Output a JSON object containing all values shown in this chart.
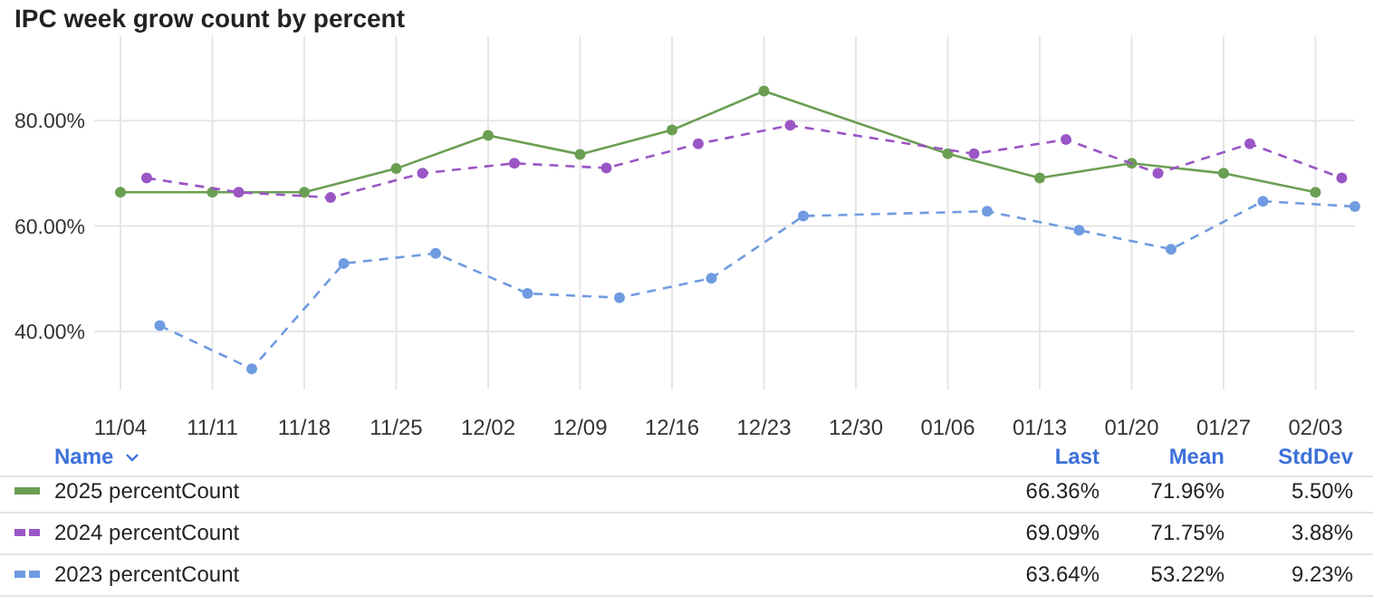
{
  "chart_data": {
    "type": "line",
    "title": "IPC week grow count by percent",
    "xlim": [
      "2024-11-02",
      "2025-02-06"
    ],
    "xticks": [
      {
        "value": "2024-11-04",
        "label": "11/04"
      },
      {
        "value": "2024-11-11",
        "label": "11/11"
      },
      {
        "value": "2024-11-18",
        "label": "11/18"
      },
      {
        "value": "2024-11-25",
        "label": "11/25"
      },
      {
        "value": "2024-12-02",
        "label": "12/02"
      },
      {
        "value": "2024-12-09",
        "label": "12/09"
      },
      {
        "value": "2024-12-16",
        "label": "12/16"
      },
      {
        "value": "2024-12-23",
        "label": "12/23"
      },
      {
        "value": "2024-12-30",
        "label": "12/30"
      },
      {
        "value": "2025-01-06",
        "label": "01/06"
      },
      {
        "value": "2025-01-13",
        "label": "01/13"
      },
      {
        "value": "2025-01-20",
        "label": "01/20"
      },
      {
        "value": "2025-01-27",
        "label": "01/27"
      },
      {
        "value": "2025-02-03",
        "label": "02/03"
      }
    ],
    "ylim": [
      29,
      96
    ],
    "yticks": [
      {
        "value": 40,
        "label": "40.00%"
      },
      {
        "value": 60,
        "label": "60.00%"
      },
      {
        "value": 80,
        "label": "80.00%"
      }
    ],
    "grid": true,
    "legend": "bottom",
    "marker": "circle",
    "series": [
      {
        "name": "2025 percentCount",
        "color": "#6a9f52",
        "line_style": "solid",
        "x": [
          "2024-11-04",
          "2024-11-11",
          "2024-11-18",
          "2024-11-25",
          "2024-12-02",
          "2024-12-09",
          "2024-12-16",
          "2024-12-23",
          "2025-01-06",
          "2025-01-13",
          "2025-01-20",
          "2025-01-27",
          "2025-02-03"
        ],
        "values": [
          66.4,
          66.4,
          66.4,
          70.9,
          77.2,
          73.6,
          78.2,
          85.6,
          73.7,
          69.1,
          71.9,
          70.0,
          66.4
        ]
      },
      {
        "name": "2024 percentCount",
        "color": "#9a56c4",
        "line_style": "dashed",
        "x": [
          "2024-11-06",
          "2024-11-13",
          "2024-11-20",
          "2024-11-27",
          "2024-12-04",
          "2024-12-11",
          "2024-12-18",
          "2024-12-25",
          "2025-01-08",
          "2025-01-15",
          "2025-01-22",
          "2025-01-29",
          "2025-02-05"
        ],
        "values": [
          69.1,
          66.4,
          65.4,
          70.0,
          71.9,
          71.0,
          75.6,
          79.1,
          73.7,
          76.4,
          70.0,
          75.6,
          69.1
        ]
      },
      {
        "name": "2023 percentCount",
        "color": "#6f9be0",
        "line_style": "dashed",
        "x": [
          "2024-11-07",
          "2024-11-14",
          "2024-11-21",
          "2024-11-28",
          "2024-12-05",
          "2024-12-12",
          "2024-12-19",
          "2024-12-26",
          "2025-01-09",
          "2025-01-16",
          "2025-01-23",
          "2025-01-30",
          "2025-02-06"
        ],
        "values": [
          41.1,
          32.9,
          52.9,
          54.8,
          47.2,
          46.4,
          50.1,
          61.9,
          62.8,
          59.2,
          55.6,
          64.7,
          63.7
        ]
      }
    ],
    "annotations": [
      "Name",
      "Last",
      "Mean",
      "StdDev",
      "66.36%",
      "71.96%",
      "5.50%",
      "69.09%",
      "71.75%",
      "3.88%",
      "63.64%",
      "53.22%",
      "9.23%"
    ]
  }
}
